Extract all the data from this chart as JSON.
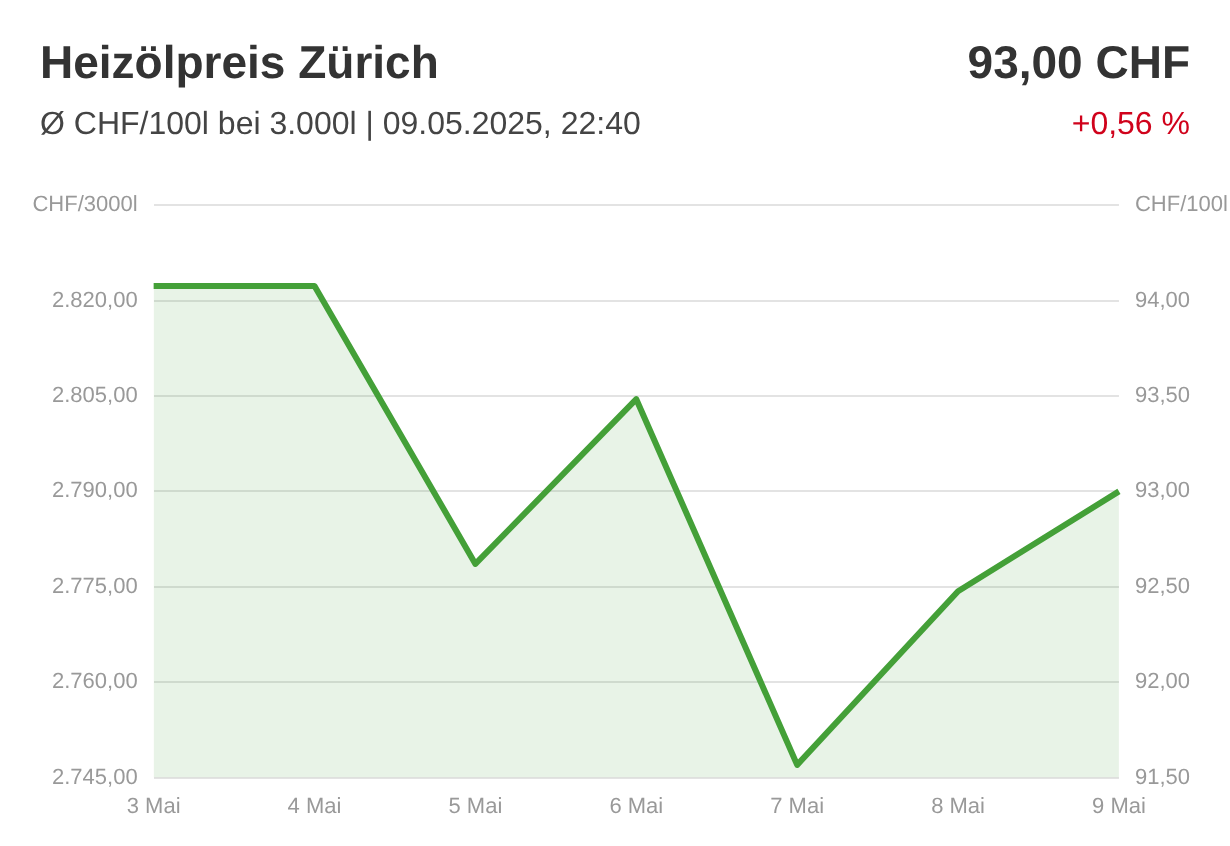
{
  "chart_data": {
    "type": "area",
    "title": "Heizölpreis Zürich",
    "subtitle": "Ø CHF/100l bei 3.000l | 09.05.2025, 22:40",
    "annotations": [
      "93,00 CHF",
      "+0,56 %"
    ],
    "ylabel": "CHF/3000l",
    "y2label": "CHF/100l",
    "categories": [
      "3 Mai",
      "4 Mai",
      "5 Mai",
      "6 Mai",
      "7 Mai",
      "8 Mai",
      "9 Mai"
    ],
    "series": [
      {
        "color": "#44a038",
        "values": [
          2822.3,
          2822.3,
          2778.6,
          2804.5,
          2747,
          2774.3,
          2790
        ]
      }
    ],
    "ylim": [
      2745,
      2835
    ],
    "yticks": [
      {
        "value": 2745,
        "label": "2.745,00"
      },
      {
        "value": 2760,
        "label": "2.760,00"
      },
      {
        "value": 2775,
        "label": "2.775,00"
      },
      {
        "value": 2790,
        "label": "2.790,00"
      },
      {
        "value": 2805,
        "label": "2.805,00"
      },
      {
        "value": 2820,
        "label": "2.820,00"
      },
      {
        "value": 2835,
        "label": null
      }
    ],
    "y2lim": [
      91.5,
      94.5
    ],
    "y2ticks": [
      {
        "value": 91.5,
        "label": "91,50"
      },
      {
        "value": 92,
        "label": "92,00"
      },
      {
        "value": 92.5,
        "label": "92,50"
      },
      {
        "value": 93,
        "label": "93,00"
      },
      {
        "value": 93.5,
        "label": "93,50"
      },
      {
        "value": 94,
        "label": "94,00"
      }
    ],
    "grid": "y",
    "legend": false
  }
}
